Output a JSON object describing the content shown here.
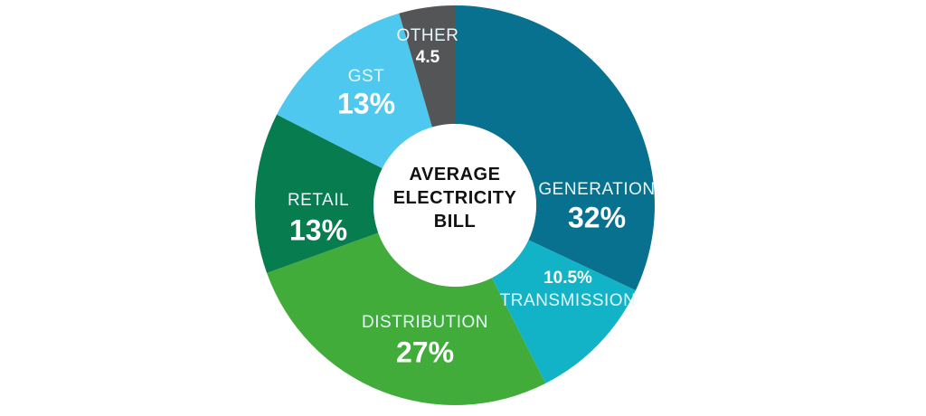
{
  "chart_data": {
    "type": "pie",
    "title": "AVERAGE ELECTRICITY BILL",
    "categories": [
      "GENERATION",
      "TRANSMISSION",
      "DISTRIBUTION",
      "RETAIL",
      "GST",
      "OTHER"
    ],
    "values": [
      32,
      10.5,
      27,
      13,
      13,
      4.5
    ],
    "value_labels": [
      "32%",
      "10.5%",
      "27%",
      "13%",
      "13%",
      "4.5"
    ],
    "colors": [
      "#08718f",
      "#12b3c6",
      "#41ac3a",
      "#077d4f",
      "#4fc8f0",
      "#545556"
    ]
  }
}
